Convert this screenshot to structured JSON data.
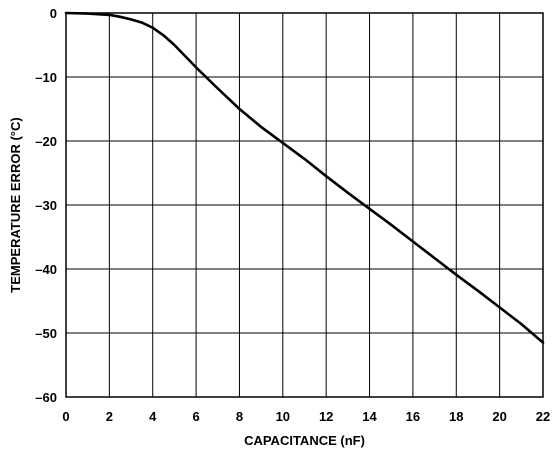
{
  "chart_data": {
    "type": "line",
    "title": "",
    "xlabel": "CAPACITANCE (nF)",
    "ylabel": "TEMPERATURE ERROR (°C)",
    "xlim": [
      0,
      22
    ],
    "ylim": [
      -60,
      0
    ],
    "grid": true,
    "x_ticks": [
      0,
      2,
      4,
      6,
      8,
      10,
      12,
      14,
      16,
      18,
      20,
      22
    ],
    "y_ticks": [
      0,
      -10,
      -20,
      -30,
      -40,
      -50,
      -60
    ],
    "x_tick_labels": [
      "0",
      "2",
      "4",
      "6",
      "8",
      "10",
      "12",
      "14",
      "16",
      "18",
      "20",
      "22"
    ],
    "y_tick_labels": [
      "0",
      "–10",
      "–20",
      "–30",
      "–40",
      "–50",
      "–60"
    ],
    "series": [
      {
        "x": [
          0,
          1,
          2,
          2.5,
          3,
          3.5,
          4,
          4.5,
          5,
          6,
          7,
          8,
          9,
          10,
          11,
          12,
          13,
          14,
          15,
          16,
          17,
          18,
          19,
          20,
          21,
          22
        ],
        "y": [
          0,
          -0.1,
          -0.3,
          -0.6,
          -1.0,
          -1.5,
          -2.3,
          -3.5,
          -5.0,
          -8.5,
          -11.8,
          -15.0,
          -17.8,
          -20.3,
          -22.8,
          -25.5,
          -28.1,
          -30.6,
          -33.1,
          -35.7,
          -38.3,
          -40.9,
          -43.4,
          -46.0,
          -48.6,
          -51.5
        ]
      }
    ]
  }
}
